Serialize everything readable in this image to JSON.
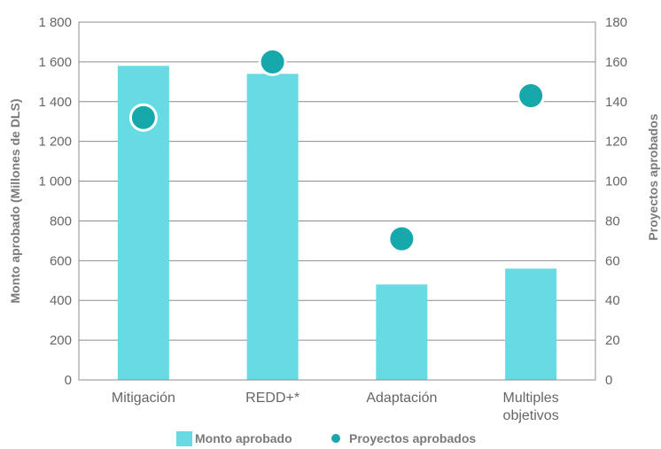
{
  "chart_data": {
    "type": "bar",
    "categories": [
      "Mitigación",
      "REDD+*",
      "Adaptación",
      "Multiples\nobjetivos"
    ],
    "series": [
      {
        "name": "Monto aprobado",
        "type": "bar",
        "axis": "left",
        "color": "#66dbe4",
        "values": [
          1580,
          1540,
          480,
          560
        ]
      },
      {
        "name": "Proyectos aprobados",
        "type": "scatter",
        "axis": "right",
        "color": "#17a8ac",
        "values": [
          132,
          160,
          71,
          143
        ]
      }
    ],
    "ylabel": "Monto aprobado (Millones de DLS)",
    "y2label": "Proyectos aprobados",
    "ylim": [
      0,
      1800
    ],
    "y2lim": [
      0,
      180
    ],
    "yticks": [
      "0",
      "200",
      "400",
      "600",
      "800",
      "1 000",
      "1 200",
      "1 400",
      "1 600",
      "1 800"
    ],
    "y2ticks": [
      "0",
      "20",
      "40",
      "60",
      "80",
      "100",
      "120",
      "140",
      "160",
      "180"
    ],
    "grid": true,
    "legend": "bottom"
  }
}
